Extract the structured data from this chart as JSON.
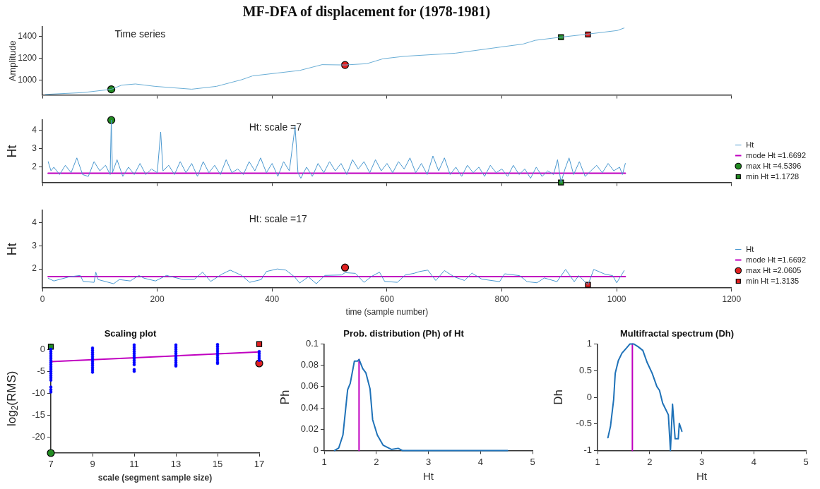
{
  "chart_data": [
    {
      "type": "line",
      "title": "MF-DFA of displacement for (1978-1981)",
      "ylabel": "Amplitude",
      "annotations": [
        "Time series"
      ],
      "xlim": [
        0,
        1200
      ],
      "xticks": [
        0,
        200,
        400,
        600,
        800,
        1000,
        1200
      ],
      "ylim": [
        865,
        1490
      ],
      "yticks": [
        1000,
        1200,
        1400
      ],
      "tick_labels": "y",
      "series": [
        {
          "color": "#6aaed6",
          "x": [
            5,
            71,
            120,
            138,
            162,
            196,
            260,
            303,
            347,
            366,
            448,
            487,
            527,
            565,
            593,
            631,
            685,
            719,
            797,
            837,
            858,
            901,
            948,
            1001,
            1013
          ],
          "values": [
            870,
            887,
            917,
            955,
            966,
            944,
            918,
            944,
            1005,
            1040,
            1090,
            1143,
            1140,
            1152,
            1197,
            1220,
            1237,
            1248,
            1304,
            1332,
            1366,
            1394,
            1422,
            1456,
            1479
          ]
        },
        {
          "type": "scatter",
          "color": "#228b22",
          "marker": "circle",
          "x": [
            120
          ],
          "values": [
            917
          ]
        },
        {
          "type": "scatter",
          "color": "#e02020",
          "marker": "circle",
          "x": [
            527
          ],
          "values": [
            1140
          ]
        },
        {
          "type": "scatter",
          "color": "#228b22",
          "marker": "square",
          "x": [
            903
          ],
          "values": [
            1395
          ]
        },
        {
          "type": "scatter",
          "color": "#e02020",
          "marker": "square",
          "x": [
            950
          ],
          "values": [
            1420
          ]
        }
      ]
    },
    {
      "type": "line",
      "ylabel": "Ht",
      "annotations": [
        "Ht: scale =7"
      ],
      "xlim": [
        0,
        1200
      ],
      "xticks": [
        0,
        200,
        400,
        600,
        800,
        1000,
        1200
      ],
      "ylim": [
        1.1728,
        4.5396
      ],
      "yticks": [
        2,
        3,
        4
      ],
      "tick_labels": "y",
      "legend": "right",
      "series": [
        {
          "name": "Ht",
          "color": "#4a98d0",
          "x": [
            10,
            15,
            20,
            30,
            40,
            50,
            60,
            70,
            80,
            90,
            100,
            110,
            118,
            120,
            122,
            130,
            140,
            150,
            160,
            170,
            180,
            190,
            200,
            206,
            210,
            220,
            230,
            240,
            250,
            260,
            270,
            280,
            290,
            300,
            310,
            320,
            330,
            340,
            350,
            360,
            370,
            380,
            390,
            400,
            410,
            420,
            430,
            440,
            445,
            450,
            460,
            470,
            480,
            490,
            500,
            510,
            520,
            530,
            540,
            550,
            560,
            570,
            580,
            590,
            600,
            610,
            620,
            630,
            640,
            650,
            660,
            670,
            680,
            690,
            700,
            710,
            720,
            730,
            740,
            750,
            760,
            770,
            780,
            790,
            800,
            810,
            820,
            830,
            840,
            850,
            860,
            870,
            880,
            890,
            897,
            903,
            910,
            917,
            925,
            935,
            945,
            955,
            965,
            975,
            985,
            995,
            1005,
            1010,
            1015
          ],
          "values": [
            2.3,
            1.8,
            2.0,
            1.6,
            2.1,
            1.7,
            2.5,
            1.6,
            1.5,
            2.3,
            1.8,
            2.1,
            1.6,
            4.5396,
            1.7,
            2.4,
            1.5,
            2.0,
            1.6,
            2.2,
            1.6,
            1.9,
            1.7,
            3.9,
            1.8,
            2.1,
            1.6,
            2.3,
            1.7,
            2.2,
            1.5,
            2.3,
            1.7,
            2.1,
            1.6,
            2.4,
            1.7,
            1.9,
            1.6,
            2.3,
            1.8,
            2.5,
            1.7,
            2.2,
            1.5,
            2.3,
            1.8,
            4.2,
            1.7,
            1.4,
            2.0,
            1.5,
            2.2,
            1.7,
            2.3,
            1.8,
            2.2,
            1.6,
            2.4,
            1.9,
            2.3,
            1.7,
            2.4,
            1.8,
            2.2,
            1.7,
            2.3,
            1.9,
            2.5,
            1.7,
            2.2,
            1.6,
            2.6,
            1.8,
            2.5,
            1.6,
            2.0,
            1.5,
            2.1,
            1.7,
            2.0,
            1.5,
            2.1,
            1.7,
            1.9,
            1.5,
            2.1,
            1.6,
            1.9,
            1.4,
            2.0,
            1.5,
            1.8,
            1.6,
            2.4,
            1.1728,
            1.9,
            2.5,
            1.6,
            2.3,
            1.5,
            1.8,
            2.1,
            1.7,
            2.2,
            1.8,
            2.0,
            1.6,
            2.2
          ]
        },
        {
          "name": "mode Ht =1.6692",
          "type": "line",
          "color": "#c000c0",
          "x": [
            10,
            1015
          ],
          "values": [
            1.6692,
            1.6692
          ]
        },
        {
          "name": "max Ht =4.5396",
          "type": "scatter",
          "color": "#228b22",
          "marker": "circle",
          "x": [
            120
          ],
          "values": [
            4.5396
          ]
        },
        {
          "name": "min Ht =1.1728",
          "type": "scatter",
          "color": "#228b22",
          "marker": "square",
          "x": [
            903
          ],
          "values": [
            1.1728
          ]
        }
      ]
    },
    {
      "type": "line",
      "ylabel": "Ht",
      "xlabel": "time (sample number)",
      "annotations": [
        "Ht: scale =17"
      ],
      "xlim": [
        0,
        1200
      ],
      "xticks": [
        0,
        200,
        400,
        600,
        800,
        1000,
        1200
      ],
      "ylim": [
        1.1728,
        4.5396
      ],
      "yticks": [
        2,
        3,
        4
      ],
      "legend": "right",
      "series": [
        {
          "name": "Ht",
          "color": "#4a98d0",
          "x": [
            10,
            20,
            47,
            66,
            71,
            90,
            93,
            97,
            124,
            134,
            153,
            168,
            177,
            197,
            216,
            245,
            264,
            279,
            293,
            313,
            327,
            347,
            361,
            381,
            390,
            409,
            424,
            439,
            448,
            463,
            477,
            492,
            521,
            527,
            545,
            560,
            574,
            587,
            596,
            618,
            632,
            647,
            657,
            671,
            685,
            700,
            717,
            735,
            748,
            765,
            796,
            805,
            831,
            844,
            861,
            874,
            896,
            911,
            926,
            934,
            950,
            960,
            980,
            993,
            1000,
            1013
          ],
          "values": [
            1.6,
            1.48,
            1.66,
            1.72,
            1.46,
            1.42,
            1.86,
            1.54,
            1.36,
            1.54,
            1.48,
            1.72,
            1.6,
            1.48,
            1.72,
            1.54,
            1.54,
            1.86,
            1.46,
            1.78,
            1.95,
            1.72,
            1.42,
            1.54,
            1.89,
            2.0,
            1.95,
            1.66,
            1.39,
            1.66,
            1.36,
            1.72,
            1.74,
            1.84,
            1.81,
            1.42,
            1.69,
            1.86,
            1.46,
            1.42,
            1.74,
            1.81,
            1.89,
            1.95,
            1.5,
            1.93,
            1.66,
            1.5,
            1.82,
            1.56,
            1.45,
            1.79,
            1.71,
            1.45,
            1.4,
            1.61,
            1.45,
            1.98,
            1.45,
            1.71,
            1.3135,
            1.98,
            1.77,
            1.71,
            1.4,
            1.93
          ]
        },
        {
          "name": "mode Ht =1.6692",
          "type": "line",
          "color": "#c000c0",
          "x": [
            10,
            1015
          ],
          "values": [
            1.6692,
            1.6692
          ]
        },
        {
          "name": "max Ht =2.0605",
          "type": "scatter",
          "color": "#e02020",
          "marker": "circle",
          "x": [
            527
          ],
          "values": [
            2.0605
          ]
        },
        {
          "name": "min Ht =1.3135",
          "type": "scatter",
          "color": "#e02020",
          "marker": "square",
          "x": [
            950
          ],
          "values": [
            1.3135
          ]
        }
      ]
    },
    {
      "type": "scatter",
      "title": "Scaling plot",
      "xlabel": "scale (segment sample size)",
      "ylabel": "log$_{2}$(RMS)",
      "xlim": [
        7,
        17
      ],
      "xticks": [
        7,
        9,
        11,
        13,
        15,
        17
      ],
      "ylim": [
        -23.6,
        1.2
      ],
      "yticks": [
        -20,
        -15,
        -10,
        -5,
        0
      ],
      "series": [
        {
          "color": "#0000ff",
          "marker": "circle",
          "x": [
            7,
            7,
            7,
            7,
            7,
            7,
            7,
            7,
            7,
            7,
            7,
            7,
            7,
            7,
            7,
            7,
            7,
            7,
            9,
            9,
            9,
            9,
            9,
            9,
            9,
            9,
            9,
            9,
            9,
            9,
            11,
            11,
            11,
            11,
            11,
            11,
            11,
            11,
            11,
            11,
            11,
            11,
            13,
            13,
            13,
            13,
            13,
            13,
            13,
            13,
            13,
            13,
            13,
            15,
            15,
            15,
            15,
            15,
            15,
            15,
            15,
            15,
            15,
            17,
            17,
            17,
            17,
            17
          ],
          "values": [
            0,
            -0.5,
            -1,
            -1.5,
            -2,
            -2.5,
            -3,
            -3.5,
            -4,
            -4.5,
            -5,
            -5.5,
            -6,
            -6.5,
            -7,
            -8.6,
            -9.2,
            -9.7,
            0.3,
            -0.2,
            -0.7,
            -1.2,
            -1.7,
            -2.2,
            -2.7,
            -3.2,
            -3.7,
            -4.2,
            -4.7,
            -5.2,
            1,
            0.5,
            0,
            -0.5,
            -1,
            -1.5,
            -2,
            -2.5,
            -3,
            -3.5,
            -4.6,
            -5,
            1,
            0.5,
            0,
            -0.5,
            -1,
            -1.5,
            -2,
            -2.5,
            -3,
            -3.5,
            -3.8,
            1.1,
            0.6,
            0.1,
            -0.4,
            -0.9,
            -1.4,
            -1.9,
            -2.4,
            -2.9,
            -3.2,
            -0.5,
            -1,
            -1.5,
            -2,
            -2.5
          ]
        },
        {
          "type": "line",
          "color": "#c000c0",
          "x": [
            7,
            17
          ],
          "values": [
            -2.8,
            -0.6
          ]
        },
        {
          "type": "scatter",
          "color": "#228b22",
          "marker": "square",
          "x": [
            7
          ],
          "values": [
            0.6
          ]
        },
        {
          "type": "scatter",
          "color": "#228b22",
          "marker": "circle",
          "x": [
            7
          ],
          "values": [
            -23.6
          ]
        },
        {
          "type": "scatter",
          "color": "#e02020",
          "marker": "square",
          "x": [
            17
          ],
          "values": [
            1.2
          ]
        },
        {
          "type": "scatter",
          "color": "#e02020",
          "marker": "circle",
          "x": [
            17
          ],
          "values": [
            -3.2
          ]
        }
      ]
    },
    {
      "type": "line",
      "title": "Prob. distribution (Ph) of Ht",
      "xlabel": "Ht",
      "ylabel": "Ph",
      "xlim": [
        1,
        5
      ],
      "xticks": [
        1,
        2,
        3,
        4,
        5
      ],
      "ylim": [
        0,
        0.1
      ],
      "yticks": [
        0,
        0.02,
        0.04,
        0.06,
        0.08,
        0.1
      ],
      "series": [
        {
          "color": "#1f72b8",
          "x": [
            1.2,
            1.28,
            1.36,
            1.45,
            1.5,
            1.58,
            1.64,
            1.67,
            1.74,
            1.8,
            1.88,
            1.93,
            2.02,
            2.13,
            2.29,
            2.42,
            2.5,
            4.52
          ],
          "values": [
            0,
            0.0024,
            0.0145,
            0.057,
            0.063,
            0.084,
            0.084,
            0.0855,
            0.077,
            0.073,
            0.058,
            0.029,
            0.0145,
            0.005,
            0.001,
            0.002,
            0,
            0
          ]
        },
        {
          "type": "line",
          "color": "#c000c0",
          "x": [
            1.6692,
            1.6692
          ],
          "values": [
            0,
            0.0855
          ]
        }
      ]
    },
    {
      "type": "line",
      "title": "Multifractal spectrum (Dh)",
      "xlabel": "Ht",
      "ylabel": "Dh",
      "xlim": [
        1,
        5
      ],
      "xticks": [
        1,
        2,
        3,
        4,
        5
      ],
      "ylim": [
        -1,
        1
      ],
      "yticks": [
        -1,
        -0.5,
        0,
        0.5,
        1
      ],
      "series": [
        {
          "color": "#1f72b8",
          "x": [
            1.2,
            1.25,
            1.31,
            1.34,
            1.4,
            1.47,
            1.56,
            1.62,
            1.7,
            1.78,
            1.87,
            1.95,
            2.05,
            2.14,
            2.19,
            2.25,
            2.36,
            2.4,
            2.44,
            2.49,
            2.55,
            2.57,
            2.62
          ],
          "values": [
            -0.76,
            -0.54,
            -0.04,
            0.45,
            0.69,
            0.83,
            0.93,
            1,
            1,
            0.95,
            0.88,
            0.66,
            0.45,
            0.2,
            0.13,
            -0.11,
            -0.33,
            -1,
            -0.13,
            -0.78,
            -0.78,
            -0.49,
            -0.64
          ]
        },
        {
          "type": "line",
          "color": "#c000c0",
          "x": [
            1.6692,
            1.6692
          ],
          "values": [
            -1,
            1
          ]
        }
      ]
    }
  ]
}
